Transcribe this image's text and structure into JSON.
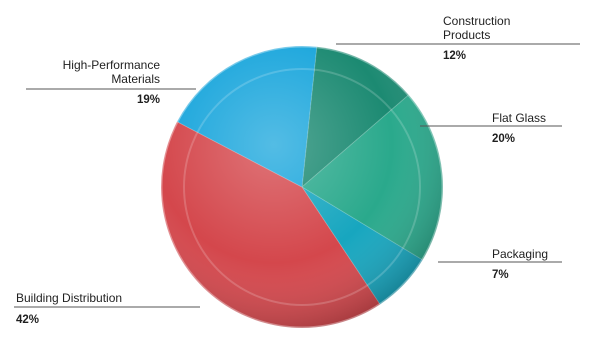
{
  "chart_data": {
    "type": "pie",
    "slices": [
      {
        "name": "Construction Products",
        "value": 12,
        "label_lines": [
          "Construction",
          "Products"
        ],
        "value_label": "12%",
        "color": "#1c8a72"
      },
      {
        "name": "Flat Glass",
        "value": 20,
        "label_lines": [
          "Flat Glass"
        ],
        "value_label": "20%",
        "color": "#2aa98c"
      },
      {
        "name": "Packaging",
        "value": 7,
        "label_lines": [
          "Packaging"
        ],
        "value_label": "7%",
        "color": "#17a6bf"
      },
      {
        "name": "Building Distribution",
        "value": 42,
        "label_lines": [
          "Building Distribution"
        ],
        "value_label": "42%",
        "color": "#d4474c"
      },
      {
        "name": "High-Performance Materials",
        "value": 19,
        "label_lines": [
          "High-Performance",
          "Materials"
        ],
        "value_label": "19%",
        "color": "#1aa6dc"
      }
    ]
  }
}
